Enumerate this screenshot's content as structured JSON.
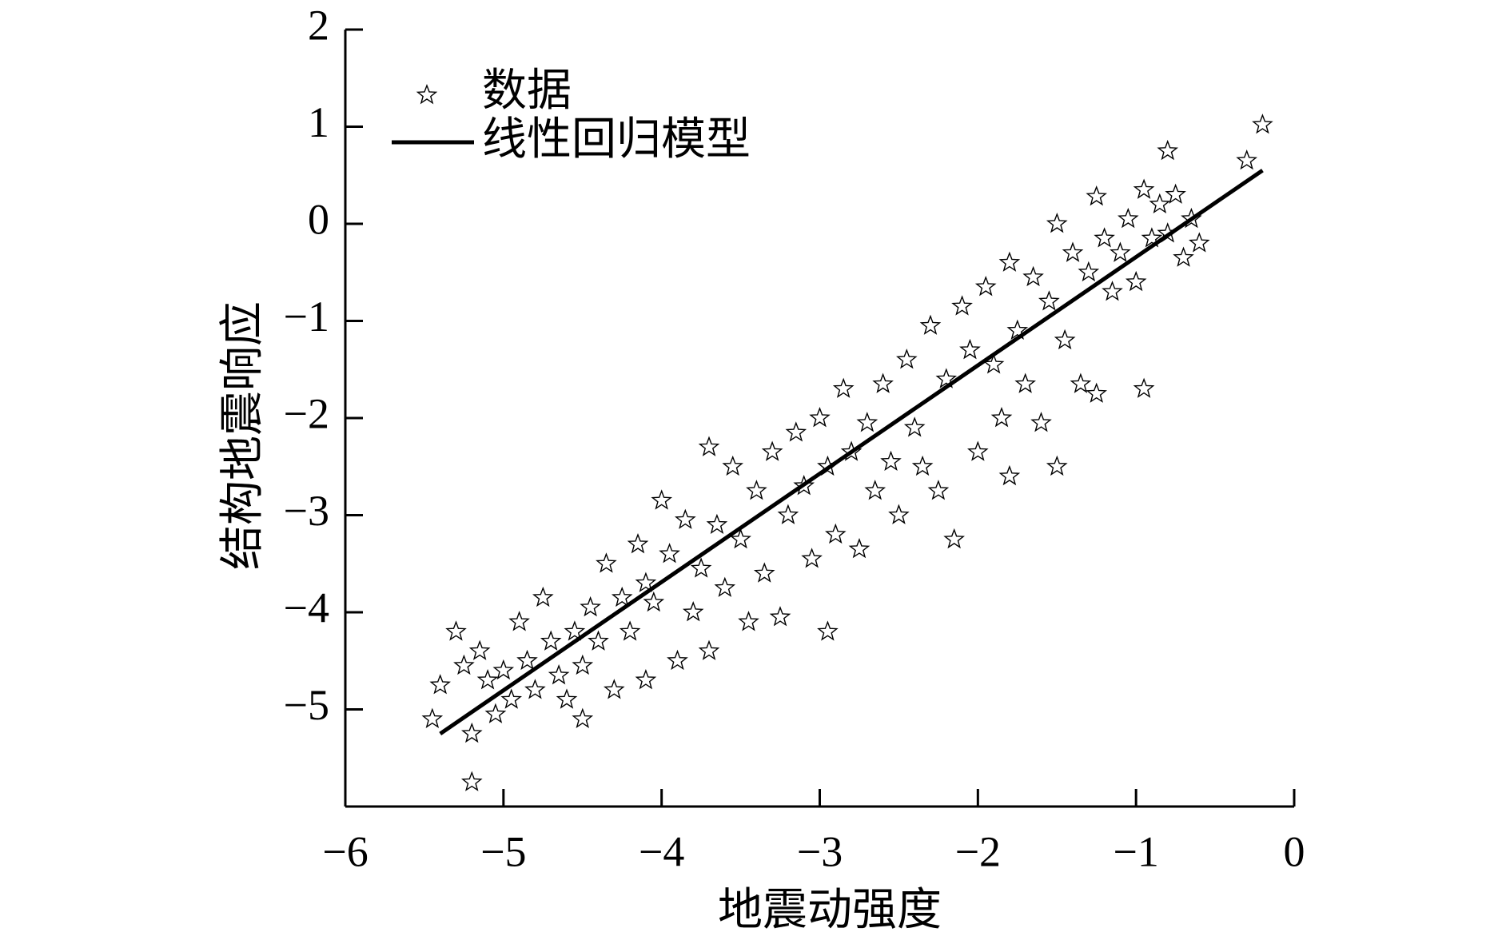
{
  "chart_data": {
    "type": "scatter",
    "x_label": "地震动强度",
    "y_label": "结构地震响应",
    "xlim": [
      -6,
      0
    ],
    "ylim": [
      -6,
      2
    ],
    "xticks": [
      {
        "value": -6,
        "label": "−6"
      },
      {
        "value": -5,
        "label": "−5"
      },
      {
        "value": -4,
        "label": "−4"
      },
      {
        "value": -3,
        "label": "−3"
      },
      {
        "value": -2,
        "label": "−2"
      },
      {
        "value": -1,
        "label": "−1"
      },
      0
    ],
    "yticks": [
      {
        "value": -5,
        "label": "−5"
      },
      {
        "value": -4,
        "label": "−4"
      },
      {
        "value": -3,
        "label": "−3"
      },
      {
        "value": -2,
        "label": "−2"
      },
      {
        "value": -1,
        "label": "−1"
      },
      0,
      1,
      2
    ],
    "legend": "upper left",
    "series": [
      {
        "name": "数据",
        "color": "#000000",
        "x": [
          -5.45,
          -5.4,
          -5.3,
          -5.25,
          -5.2,
          -5.2,
          -5.15,
          -5.1,
          -5.05,
          -5.0,
          -4.95,
          -4.9,
          -4.85,
          -4.8,
          -4.75,
          -4.7,
          -4.65,
          -4.6,
          -4.55,
          -4.5,
          -4.5,
          -4.45,
          -4.4,
          -4.35,
          -4.3,
          -4.25,
          -4.2,
          -4.15,
          -4.1,
          -4.1,
          -4.05,
          -4.0,
          -3.95,
          -3.9,
          -3.85,
          -3.8,
          -3.75,
          -3.7,
          -3.7,
          -3.65,
          -3.6,
          -3.55,
          -3.5,
          -3.45,
          -3.4,
          -3.35,
          -3.3,
          -3.25,
          -3.2,
          -3.15,
          -3.1,
          -3.05,
          -3.0,
          -2.95,
          -2.95,
          -2.9,
          -2.85,
          -2.8,
          -2.75,
          -2.7,
          -2.65,
          -2.6,
          -2.55,
          -2.5,
          -2.45,
          -2.4,
          -2.35,
          -2.3,
          -2.25,
          -2.2,
          -2.15,
          -2.1,
          -2.05,
          -2.0,
          -1.95,
          -1.9,
          -1.85,
          -1.8,
          -1.8,
          -1.75,
          -1.7,
          -1.65,
          -1.6,
          -1.55,
          -1.5,
          -1.5,
          -1.45,
          -1.4,
          -1.35,
          -1.3,
          -1.25,
          -1.25,
          -1.2,
          -1.15,
          -1.1,
          -1.05,
          -1.0,
          -0.95,
          -0.95,
          -0.9,
          -0.85,
          -0.8,
          -0.8,
          -0.75,
          -0.7,
          -0.65,
          -0.6,
          -0.3,
          -0.2
        ],
        "values": [
          -5.1,
          -4.75,
          -4.2,
          -4.55,
          -5.75,
          -5.25,
          -4.4,
          -4.7,
          -5.05,
          -4.6,
          -4.9,
          -4.1,
          -4.5,
          -4.8,
          -3.85,
          -4.3,
          -4.65,
          -4.9,
          -4.2,
          -4.55,
          -5.1,
          -3.95,
          -4.3,
          -3.5,
          -4.8,
          -3.85,
          -4.2,
          -3.3,
          -3.7,
          -4.7,
          -3.9,
          -2.85,
          -3.4,
          -4.5,
          -3.05,
          -4.0,
          -3.55,
          -2.3,
          -4.4,
          -3.1,
          -3.75,
          -2.5,
          -3.25,
          -4.1,
          -2.75,
          -3.6,
          -2.35,
          -4.05,
          -3.0,
          -2.15,
          -2.7,
          -3.45,
          -2.0,
          -4.2,
          -2.5,
          -3.2,
          -1.7,
          -2.35,
          -3.35,
          -2.05,
          -2.75,
          -1.65,
          -2.45,
          -3.0,
          -1.4,
          -2.1,
          -2.5,
          -1.05,
          -2.75,
          -1.6,
          -3.25,
          -0.85,
          -1.3,
          -2.35,
          -0.65,
          -1.45,
          -2.0,
          -0.4,
          -2.6,
          -1.1,
          -1.65,
          -0.55,
          -2.05,
          -0.8,
          -2.5,
          0.0,
          -1.2,
          -0.3,
          -1.65,
          -0.5,
          0.28,
          -1.75,
          -0.15,
          -0.7,
          -0.3,
          0.05,
          -0.6,
          -1.7,
          0.35,
          -0.15,
          0.2,
          0.75,
          -0.1,
          0.3,
          -0.35,
          0.05,
          -0.2,
          0.65,
          1.02
        ]
      },
      {
        "name": "线性回归模型",
        "color": "#000000",
        "x": [
          -5.4,
          -0.2
        ],
        "values": [
          -5.25,
          0.55
        ]
      }
    ]
  }
}
